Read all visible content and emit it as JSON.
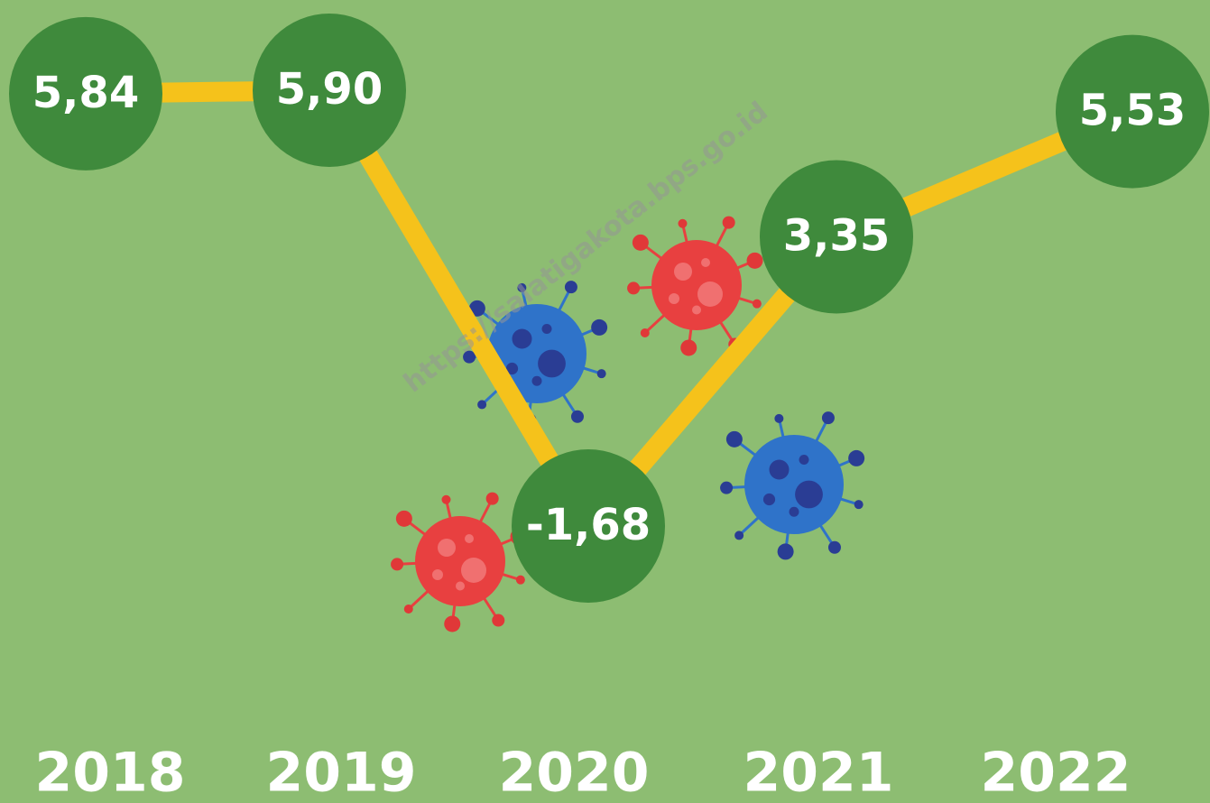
{
  "chart_data": {
    "type": "line",
    "categories": [
      "2018",
      "2019",
      "2020",
      "2021",
      "2022"
    ],
    "values": [
      5.84,
      5.9,
      -1.68,
      3.35,
      5.53
    ],
    "value_labels": [
      "5,84",
      "5,90",
      "-1,68",
      "3,35",
      "5,53"
    ],
    "color": "#f5c21b",
    "marker_color": "#3f8a3c",
    "watermark": "https://salatigakota.bps.go.id"
  }
}
